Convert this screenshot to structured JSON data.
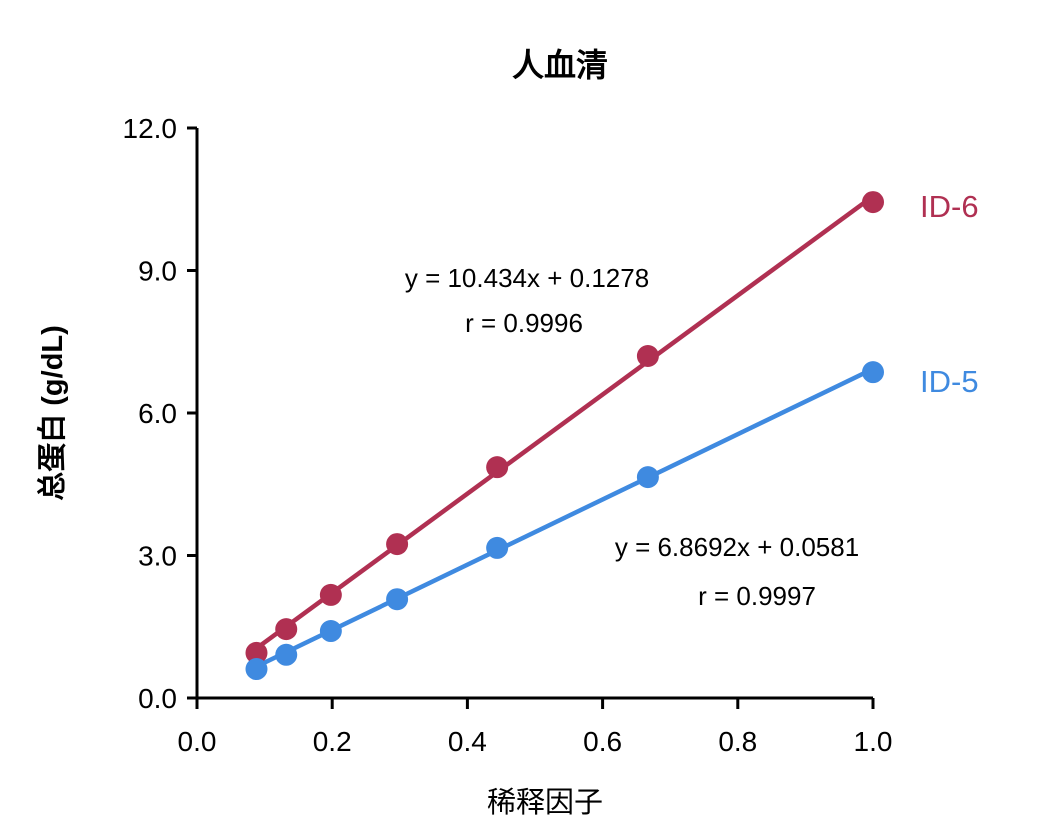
{
  "chart_data": {
    "type": "scatter",
    "title": "人血清",
    "xlabel": "稀释因子",
    "ylabel": "总蛋白 (g/dL)",
    "xlim": [
      0,
      1.0
    ],
    "ylim": [
      0,
      12.0
    ],
    "xticks": [
      "0.0",
      "0.2",
      "0.4",
      "0.6",
      "0.8",
      "1.0"
    ],
    "yticks": [
      "0.0",
      "3.0",
      "6.0",
      "9.0",
      "12.0"
    ],
    "grid": false,
    "series": [
      {
        "name": "ID-6",
        "color": "#B03052",
        "x": [
          0.088,
          0.132,
          0.198,
          0.296,
          0.444,
          0.667,
          1.0
        ],
        "y": [
          0.95,
          1.45,
          2.17,
          3.24,
          4.86,
          7.2,
          10.44
        ],
        "fit": {
          "slope": 10.434,
          "intercept": 0.1278
        },
        "equation": "y = 10.434x + 0.1278",
        "r_label": "r = 0.9996"
      },
      {
        "name": "ID-5",
        "color": "#3F8AE0",
        "x": [
          0.088,
          0.132,
          0.198,
          0.296,
          0.444,
          0.667,
          1.0
        ],
        "y": [
          0.61,
          0.91,
          1.41,
          2.08,
          3.16,
          4.65,
          6.86
        ],
        "fit": {
          "slope": 6.8692,
          "intercept": 0.0581
        },
        "equation": "y = 6.8692x + 0.0581",
        "r_label": "r = 0.9997"
      }
    ]
  }
}
